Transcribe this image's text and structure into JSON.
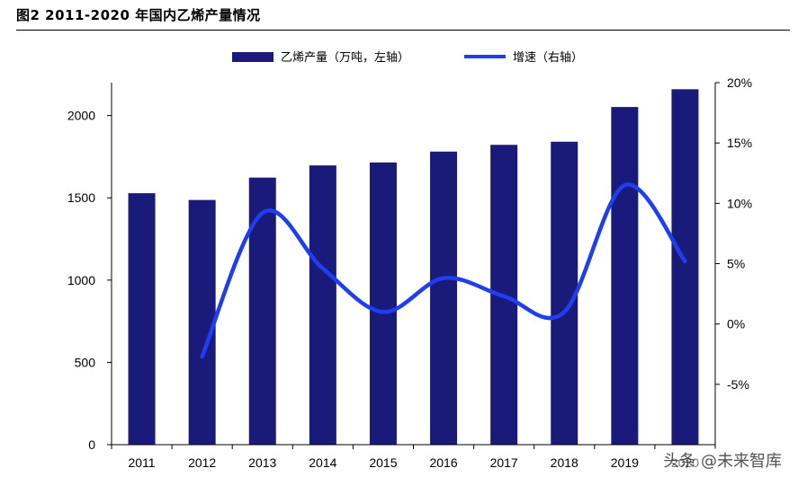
{
  "figure_title": "图2  2011-2020 年国内乙烯产量情况",
  "watermark": "头条 @未来智库",
  "colors": {
    "bar": "#1a1a7a",
    "line": "#1f3ef0",
    "axis": "#000000"
  },
  "chart_data": {
    "type": "bar",
    "categories": [
      "2011",
      "2012",
      "2013",
      "2014",
      "2015",
      "2016",
      "2017",
      "2018",
      "2019",
      "2020"
    ],
    "series": [
      {
        "name": "乙烯产量（万吨，左轴）",
        "type": "bar",
        "axis": "left",
        "values": [
          1528,
          1487,
          1623,
          1697,
          1715,
          1781,
          1822,
          1841,
          2052,
          2160
        ]
      },
      {
        "name": "增速（右轴）",
        "type": "line",
        "axis": "right",
        "smooth": true,
        "values": [
          null,
          -2.7,
          9.2,
          4.6,
          1.0,
          3.8,
          2.3,
          1.0,
          11.5,
          5.2
        ]
      }
    ],
    "y_left": {
      "lim": [
        0,
        2200
      ],
      "ticks": [
        0,
        500,
        1000,
        1500,
        2000
      ]
    },
    "y_right": {
      "lim": [
        -10,
        20
      ],
      "ticks": [
        -5,
        0,
        5,
        10,
        15,
        20
      ],
      "tick_labels": [
        "-5%",
        "0%",
        "5%",
        "10%",
        "15%",
        "20%"
      ]
    },
    "legend": "top",
    "grid": false
  }
}
